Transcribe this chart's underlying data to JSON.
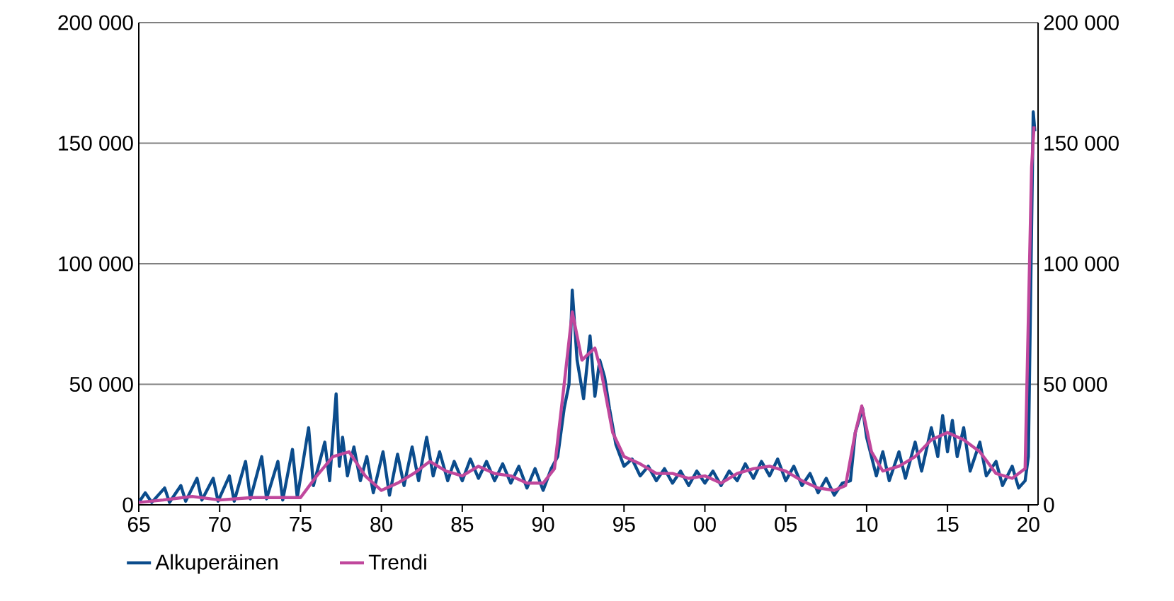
{
  "chart_data": {
    "type": "line",
    "xlim": [
      1965,
      2020.6
    ],
    "xticks": [
      {
        "value": 1965,
        "label": "65"
      },
      {
        "value": 1970,
        "label": "70"
      },
      {
        "value": 1975,
        "label": "75"
      },
      {
        "value": 1980,
        "label": "80"
      },
      {
        "value": 1985,
        "label": "85"
      },
      {
        "value": 1990,
        "label": "90"
      },
      {
        "value": 1995,
        "label": "95"
      },
      {
        "value": 2000,
        "label": "00"
      },
      {
        "value": 2005,
        "label": "05"
      },
      {
        "value": 2010,
        "label": "10"
      },
      {
        "value": 2015,
        "label": "15"
      },
      {
        "value": 2020,
        "label": "20"
      }
    ],
    "ylim": [
      0,
      200000
    ],
    "yticks": [
      {
        "value": 0,
        "label": "0"
      },
      {
        "value": 50000,
        "label": "50 000"
      },
      {
        "value": 100000,
        "label": "100 000"
      },
      {
        "value": 150000,
        "label": "150 000"
      },
      {
        "value": 200000,
        "label": "200 000"
      }
    ],
    "y2lim": [
      0,
      200000
    ],
    "y2ticks": [
      {
        "value": 0,
        "label": "0"
      },
      {
        "value": 50000,
        "label": "50 000"
      },
      {
        "value": 100000,
        "label": "100 000"
      },
      {
        "value": 150000,
        "label": "150 000"
      },
      {
        "value": 200000,
        "label": "200 000"
      }
    ],
    "grid": "y",
    "legend": "bottom",
    "marker": "none",
    "line_style": "solid",
    "series": [
      {
        "name": "Alkuperäinen",
        "color": "#0b4c8c",
        "x": [
          1965.0,
          1965.4,
          1965.8,
          1966.6,
          1966.9,
          1967.6,
          1967.9,
          1968.6,
          1968.9,
          1969.6,
          1969.9,
          1970.6,
          1970.9,
          1971.6,
          1971.9,
          1972.6,
          1972.9,
          1973.6,
          1973.9,
          1974.5,
          1974.8,
          1975.5,
          1975.8,
          1976.5,
          1976.8,
          1977.2,
          1977.4,
          1977.6,
          1977.9,
          1978.3,
          1978.7,
          1979.1,
          1979.5,
          1980.1,
          1980.5,
          1981.0,
          1981.4,
          1981.9,
          1982.3,
          1982.8,
          1983.2,
          1983.6,
          1984.1,
          1984.5,
          1985.0,
          1985.5,
          1986.0,
          1986.5,
          1987.0,
          1987.5,
          1988.0,
          1988.5,
          1989.0,
          1989.5,
          1990.0,
          1990.5,
          1990.9,
          1991.3,
          1991.6,
          1991.8,
          1992.1,
          1992.5,
          1992.9,
          1993.2,
          1993.5,
          1993.8,
          1994.1,
          1994.5,
          1995.0,
          1995.5,
          1996.0,
          1996.5,
          1997.0,
          1997.5,
          1998.0,
          1998.5,
          1999.0,
          1999.5,
          2000.0,
          2000.5,
          2001.0,
          2001.5,
          2002.0,
          2002.5,
          2003.0,
          2003.5,
          2004.0,
          2004.5,
          2005.0,
          2005.5,
          2006.0,
          2006.5,
          2007.0,
          2007.5,
          2008.0,
          2008.5,
          2009.0,
          2009.3,
          2009.75,
          2010.0,
          2010.3,
          2010.6,
          2011.0,
          2011.4,
          2012.0,
          2012.4,
          2013.0,
          2013.4,
          2014.0,
          2014.4,
          2014.7,
          2015.0,
          2015.3,
          2015.6,
          2016.0,
          2016.4,
          2017.0,
          2017.4,
          2018.0,
          2018.4,
          2019.0,
          2019.4,
          2019.8,
          2020.0,
          2020.3,
          2020.4
        ],
        "values": [
          1000,
          5000,
          1000,
          7000,
          1000,
          8000,
          1500,
          11000,
          2000,
          11000,
          1500,
          12000,
          1500,
          18000,
          2500,
          20000,
          2500,
          18000,
          2000,
          23000,
          3000,
          32000,
          8000,
          26000,
          10000,
          46000,
          16000,
          28000,
          12000,
          24000,
          10000,
          20000,
          5000,
          22000,
          4000,
          21000,
          8000,
          24000,
          10000,
          28000,
          12000,
          22000,
          10000,
          18000,
          10000,
          19000,
          11000,
          18000,
          10000,
          17000,
          9000,
          16000,
          7000,
          15000,
          6000,
          15000,
          20000,
          40000,
          50000,
          89000,
          60000,
          44000,
          70000,
          45000,
          60000,
          53000,
          40000,
          25000,
          16000,
          19000,
          12000,
          16000,
          10000,
          15000,
          9000,
          14000,
          8000,
          14000,
          9000,
          14000,
          8000,
          14000,
          10000,
          17000,
          11000,
          18000,
          12000,
          19000,
          10000,
          16000,
          8000,
          13000,
          5000,
          11000,
          4000,
          9000,
          10000,
          30000,
          40000,
          28000,
          20000,
          12000,
          22000,
          10000,
          22000,
          11000,
          26000,
          14000,
          32000,
          20000,
          37000,
          22000,
          35000,
          20000,
          32000,
          14000,
          26000,
          12000,
          18000,
          8000,
          16000,
          7000,
          10000,
          20000,
          163000,
          155000
        ]
      },
      {
        "name": "Trendi",
        "color": "#c0479c",
        "x": [
          1965.0,
          1966.5,
          1968.3,
          1970.0,
          1972.0,
          1974.0,
          1975.0,
          1976.0,
          1977.0,
          1978.0,
          1979.0,
          1980.0,
          1981.0,
          1982.0,
          1983.0,
          1984.0,
          1985.0,
          1986.0,
          1987.0,
          1988.0,
          1989.0,
          1990.0,
          1990.7,
          1991.3,
          1991.8,
          1992.4,
          1992.7,
          1993.2,
          1993.6,
          1994.3,
          1995.0,
          1996.0,
          1997.0,
          1998.0,
          1999.0,
          2000.0,
          2001.0,
          2002.0,
          2003.0,
          2004.0,
          2005.0,
          2006.0,
          2007.0,
          2008.0,
          2008.7,
          2009.3,
          2009.7,
          2010.3,
          2011.0,
          2012.0,
          2013.0,
          2014.0,
          2015.0,
          2016.0,
          2017.0,
          2018.0,
          2019.0,
          2019.8,
          2020.2,
          2020.35
        ],
        "values": [
          1000,
          2000,
          3500,
          2000,
          3000,
          3000,
          3000,
          12000,
          20000,
          22000,
          12000,
          6000,
          9000,
          13000,
          18000,
          14000,
          12000,
          16000,
          13000,
          12000,
          9000,
          9000,
          15000,
          50000,
          80000,
          60000,
          62000,
          65000,
          55000,
          30000,
          20000,
          17000,
          13000,
          13000,
          11000,
          12000,
          9000,
          13000,
          15000,
          16000,
          14000,
          10000,
          7000,
          6000,
          8000,
          30000,
          41000,
          22000,
          14000,
          16000,
          20000,
          27000,
          30000,
          27000,
          22000,
          13000,
          11000,
          15000,
          140000,
          157000
        ]
      }
    ]
  }
}
